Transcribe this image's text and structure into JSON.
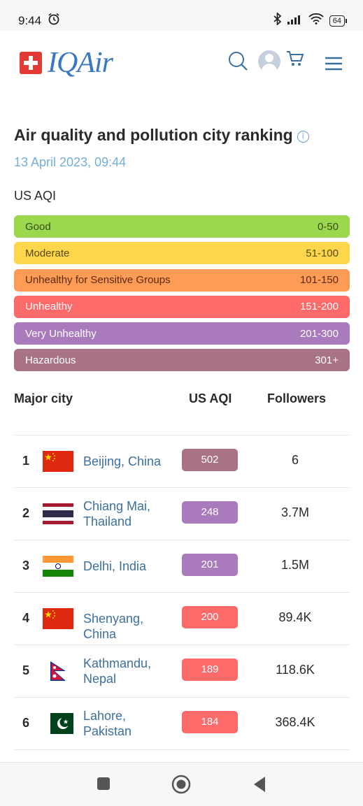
{
  "status_bar": {
    "time": "9:44",
    "battery": "64"
  },
  "header": {
    "brand": "IQAir"
  },
  "page": {
    "title": "Air quality and pollution city ranking",
    "info": "i",
    "date": "13 April 2023, 09:44",
    "aqi_label": "US AQI"
  },
  "scale": [
    {
      "label": "Good",
      "range": "0-50",
      "bg": "#9bd84e",
      "fg": "#3a4a1c"
    },
    {
      "label": "Moderate",
      "range": "51-100",
      "bg": "#fdd64b",
      "fg": "#5a4a10"
    },
    {
      "label": "Unhealthy for Sensitive Groups",
      "range": "101-150",
      "bg": "#fe9b57",
      "fg": "#5b2b0c"
    },
    {
      "label": "Unhealthy",
      "range": "151-200",
      "bg": "#fe6a69",
      "fg": "#ffffff"
    },
    {
      "label": "Very Unhealthy",
      "range": "201-300",
      "bg": "#a97abc",
      "fg": "#ffffff"
    },
    {
      "label": "Hazardous",
      "range": "301+",
      "bg": "#a87383",
      "fg": "#ffffff"
    }
  ],
  "table": {
    "col_city": "Major city",
    "col_aqi": "US AQI",
    "col_followers": "Followers",
    "rows": [
      {
        "rank": "1",
        "city": "Beijing, China",
        "aqi": "502",
        "followers": "6",
        "color": "#a87383",
        "flag": "china"
      },
      {
        "rank": "2",
        "city": "Chiang Mai, Thailand",
        "aqi": "248",
        "followers": "3.7M",
        "color": "#a97abc",
        "flag": "thailand"
      },
      {
        "rank": "3",
        "city": "Delhi, India",
        "aqi": "201",
        "followers": "1.5M",
        "color": "#a97abc",
        "flag": "india"
      },
      {
        "rank": "4",
        "city": "Shenyang, China",
        "aqi": "200",
        "followers": "89.4K",
        "color": "#fe6a69",
        "flag": "china"
      },
      {
        "rank": "5",
        "city": "Kathmandu, Nepal",
        "aqi": "189",
        "followers": "118.6K",
        "color": "#fe6a69",
        "flag": "nepal"
      },
      {
        "rank": "6",
        "city": "Lahore, Pakistan",
        "aqi": "184",
        "followers": "368.4K",
        "color": "#fe6a69",
        "flag": "pakistan"
      }
    ]
  }
}
